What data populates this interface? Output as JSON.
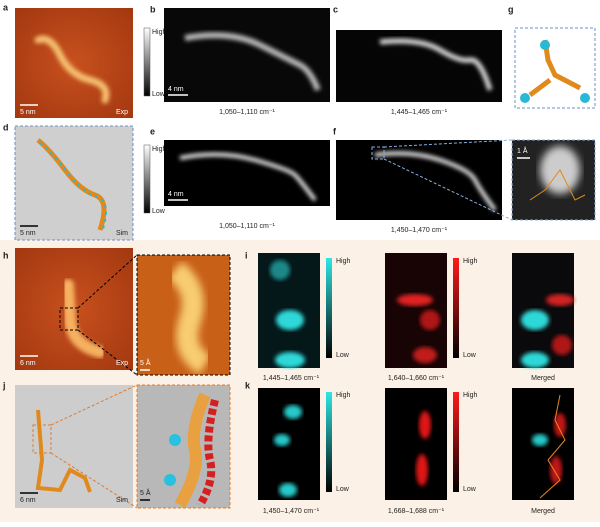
{
  "panels": {
    "a": {
      "letter": "a",
      "scale": "5 nm",
      "tag": "Exp"
    },
    "b": {
      "letter": "b",
      "high": "High",
      "low": "Low",
      "scale": "4 nm",
      "range": "1,050–1,110 cm⁻¹"
    },
    "c": {
      "letter": "c",
      "range": "1,445–1,465 cm⁻¹"
    },
    "g": {
      "letter": "g",
      "inset_scale": "1 Å"
    },
    "d": {
      "letter": "d",
      "scale": "5 nm",
      "tag": "Sim"
    },
    "e": {
      "letter": "e",
      "high": "High",
      "low": "Low",
      "scale": "4 nm",
      "range": "1,050–1,110 cm⁻¹"
    },
    "f": {
      "letter": "f",
      "range": "1,450–1,470 cm⁻¹"
    },
    "h": {
      "letter": "h",
      "scale": "6 nm",
      "tag": "Exp",
      "zoom_scale": "5 Å"
    },
    "i": {
      "letter": "i",
      "cyan_high": "High",
      "cyan_low": "Low",
      "cyan_range": "1,445–1,465 cm⁻¹",
      "red_high": "High",
      "red_low": "Low",
      "red_range": "1,640–1,660 cm⁻¹",
      "merged": "Merged"
    },
    "j": {
      "letter": "j",
      "scale": "6 nm",
      "tag": "Sim",
      "zoom_scale": "5 Å"
    },
    "k": {
      "letter": "k",
      "cyan_high": "High",
      "cyan_low": "Low",
      "cyan_range": "1,450–1,470 cm⁻¹",
      "red_high": "High",
      "red_low": "Low",
      "red_range": "1,668–1,688 cm⁻¹",
      "merged": "Merged"
    }
  }
}
